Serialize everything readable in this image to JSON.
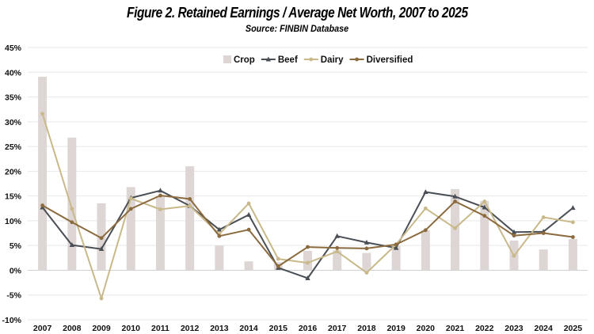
{
  "chart_data": {
    "type": "bar+line",
    "title": "Figure 2. Retained Earnings / Average Net Worth, 2007 to 2025",
    "subtitle": "Source:  FINBIN Database",
    "categories": [
      "2007",
      "2008",
      "2009",
      "2010",
      "2011",
      "2012",
      "2013",
      "2014",
      "2015",
      "2016",
      "2017",
      "2018",
      "2019",
      "2020",
      "2021",
      "2022",
      "2023",
      "2024",
      "2025"
    ],
    "ylim": [
      -10,
      45
    ],
    "yticks": [
      -10,
      -5,
      0,
      5,
      10,
      15,
      20,
      25,
      30,
      35,
      40,
      45
    ],
    "ytick_labels": [
      "-10%",
      "-5%",
      "0%",
      "5%",
      "10%",
      "15%",
      "20%",
      "25%",
      "30%",
      "35%",
      "40%",
      "45%"
    ],
    "grid": true,
    "legend_position": "top-right",
    "series": [
      {
        "name": "Crop",
        "kind": "bar",
        "color": "#ddd6d5",
        "values": [
          39.1,
          26.8,
          13.5,
          16.8,
          14.9,
          21.0,
          5.0,
          1.8,
          1.6,
          3.9,
          4.0,
          3.5,
          4.9,
          8.1,
          16.4,
          14.0,
          6.0,
          4.2,
          6.3
        ]
      },
      {
        "name": "Beef",
        "kind": "line",
        "color": "#4a4f55",
        "marker": "triangle",
        "values": [
          12.7,
          5.1,
          4.3,
          14.6,
          16.1,
          13.0,
          8.2,
          11.2,
          0.5,
          -1.6,
          6.9,
          5.6,
          4.5,
          15.8,
          14.9,
          12.7,
          7.7,
          7.8,
          12.6
        ]
      },
      {
        "name": "Dairy",
        "kind": "line",
        "color": "#c9b98a",
        "marker": "circle",
        "values": [
          31.6,
          12.4,
          -5.7,
          14.5,
          12.3,
          13.0,
          7.3,
          13.5,
          2.3,
          1.5,
          3.8,
          -0.5,
          5.2,
          12.5,
          8.5,
          13.9,
          2.9,
          10.7,
          9.7
        ]
      },
      {
        "name": "Diversified",
        "kind": "line",
        "color": "#8b6a3e",
        "marker": "circle",
        "values": [
          13.1,
          9.7,
          6.5,
          12.4,
          15.1,
          14.4,
          6.9,
          8.2,
          0.8,
          4.7,
          4.5,
          4.4,
          5.2,
          8.1,
          13.9,
          11.0,
          7.0,
          7.5,
          6.7
        ]
      }
    ]
  }
}
